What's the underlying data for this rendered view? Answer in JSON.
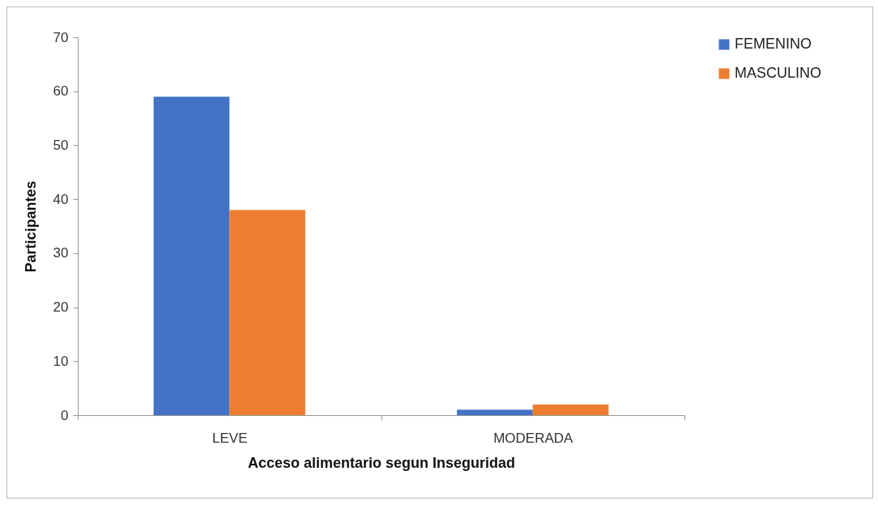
{
  "chart_data": {
    "type": "bar",
    "xlabel": "Acceso alimentario segun Inseguridad",
    "ylabel": "Participantes",
    "categories": [
      "LEVE",
      "MODERADA"
    ],
    "series": [
      {
        "name": "FEMENINO",
        "color": "#4472c4",
        "values": [
          59,
          1
        ]
      },
      {
        "name": "MASCULINO",
        "color": "#ed7d31",
        "values": [
          38,
          2
        ]
      }
    ],
    "ylim": [
      0,
      70
    ],
    "yticks": [
      0,
      10,
      20,
      30,
      40,
      50,
      60,
      70
    ],
    "grid": false,
    "legend": "right"
  }
}
